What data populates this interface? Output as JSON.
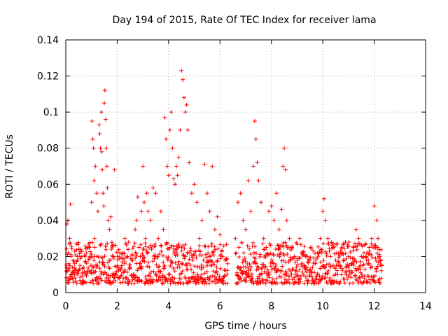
{
  "chart_data": {
    "type": "scatter",
    "title": "Day 194 of 2015, Rate Of TEC Index for receiver lama",
    "xlabel": "GPS time / hours",
    "ylabel": "ROTI / TECUs",
    "xlim": [
      0,
      14
    ],
    "ylim": [
      0,
      0.14
    ],
    "x_ticks": [
      0,
      2,
      4,
      6,
      8,
      10,
      12,
      14
    ],
    "x_tick_labels": [
      "0",
      "2",
      "4",
      "6",
      "8",
      "10",
      "12",
      "14"
    ],
    "y_ticks": [
      0,
      0.02,
      0.04,
      0.06,
      0.08,
      0.1,
      0.12,
      0.14
    ],
    "y_tick_labels": [
      "0",
      "0.02",
      "0.04",
      "0.06",
      "0.08",
      "0.1",
      "0.12",
      "0.14"
    ],
    "grid": true,
    "marker": "plus",
    "color": "#ff0000",
    "series": [
      {
        "name": "ROTI",
        "x": [
          0.02,
          0.05,
          0.08,
          0.1,
          0.12,
          0.15,
          0.18,
          0.2,
          0.25,
          0.3,
          0.35,
          0.4,
          0.45,
          0.5,
          0.55,
          0.6,
          0.65,
          0.7,
          0.75,
          0.8,
          0.85,
          0.9,
          0.95,
          1.0,
          1.02,
          1.05,
          1.08,
          1.1,
          1.12,
          1.15,
          1.2,
          1.25,
          1.3,
          1.32,
          1.35,
          1.38,
          1.4,
          1.42,
          1.45,
          1.48,
          1.5,
          1.52,
          1.55,
          1.58,
          1.6,
          1.62,
          1.65,
          1.7,
          1.75,
          1.8,
          1.85,
          1.9,
          2.0,
          2.1,
          2.2,
          2.3,
          2.4,
          2.5,
          2.6,
          2.7,
          2.75,
          2.8,
          2.85,
          2.9,
          2.95,
          3.0,
          3.05,
          3.1,
          3.15,
          3.2,
          3.3,
          3.4,
          3.5,
          3.6,
          3.7,
          3.8,
          3.85,
          3.9,
          3.95,
          4.0,
          4.05,
          4.1,
          4.15,
          4.2,
          4.25,
          4.3,
          4.35,
          4.4,
          4.45,
          4.5,
          4.55,
          4.6,
          4.65,
          4.7,
          4.75,
          4.8,
          4.9,
          5.0,
          5.1,
          5.2,
          5.3,
          5.4,
          5.5,
          5.6,
          5.7,
          5.8,
          5.9,
          6.0,
          6.1,
          6.2,
          6.3,
          6.6,
          6.7,
          6.8,
          6.9,
          7.0,
          7.1,
          7.2,
          7.3,
          7.35,
          7.4,
          7.45,
          7.5,
          7.6,
          7.7,
          7.8,
          7.9,
          8.0,
          8.1,
          8.2,
          8.3,
          8.4,
          8.45,
          8.5,
          8.55,
          8.6,
          8.7,
          8.8,
          8.9,
          9.0,
          9.1,
          9.2,
          9.3,
          9.4,
          9.5,
          9.6,
          9.7,
          9.8,
          9.9,
          10.0,
          10.05,
          10.1,
          10.2,
          10.3,
          10.4,
          10.5,
          10.6,
          10.7,
          10.8,
          10.9,
          11.0,
          11.1,
          11.2,
          11.3,
          11.4,
          11.5,
          11.6,
          11.7,
          11.8,
          11.9,
          12.0,
          12.05,
          12.1,
          12.15,
          12.2,
          12.25,
          12.3
        ],
        "y": [
          0.012,
          0.038,
          0.04,
          0.022,
          0.016,
          0.03,
          0.049,
          0.02,
          0.014,
          0.011,
          0.016,
          0.013,
          0.018,
          0.012,
          0.015,
          0.02,
          0.011,
          0.014,
          0.017,
          0.022,
          0.012,
          0.025,
          0.02,
          0.05,
          0.095,
          0.085,
          0.08,
          0.062,
          0.03,
          0.07,
          0.055,
          0.045,
          0.093,
          0.088,
          0.08,
          0.1,
          0.078,
          0.068,
          0.055,
          0.048,
          0.105,
          0.112,
          0.096,
          0.08,
          0.07,
          0.058,
          0.04,
          0.035,
          0.042,
          0.026,
          0.02,
          0.068,
          0.015,
          0.022,
          0.017,
          0.03,
          0.02,
          0.014,
          0.018,
          0.035,
          0.04,
          0.053,
          0.025,
          0.02,
          0.045,
          0.07,
          0.05,
          0.03,
          0.055,
          0.045,
          0.04,
          0.058,
          0.055,
          0.03,
          0.045,
          0.035,
          0.097,
          0.085,
          0.07,
          0.065,
          0.09,
          0.1,
          0.08,
          0.063,
          0.06,
          0.07,
          0.065,
          0.075,
          0.09,
          0.123,
          0.118,
          0.108,
          0.1,
          0.104,
          0.09,
          0.072,
          0.055,
          0.06,
          0.05,
          0.03,
          0.04,
          0.071,
          0.055,
          0.045,
          0.07,
          0.035,
          0.042,
          0.032,
          0.02,
          0.018,
          0.016,
          0.03,
          0.05,
          0.055,
          0.04,
          0.035,
          0.062,
          0.045,
          0.07,
          0.095,
          0.085,
          0.072,
          0.062,
          0.05,
          0.03,
          0.025,
          0.045,
          0.048,
          0.04,
          0.055,
          0.035,
          0.046,
          0.07,
          0.08,
          0.068,
          0.04,
          0.03,
          0.025,
          0.02,
          0.018,
          0.03,
          0.022,
          0.015,
          0.02,
          0.018,
          0.014,
          0.016,
          0.022,
          0.03,
          0.045,
          0.052,
          0.04,
          0.03,
          0.02,
          0.025,
          0.018,
          0.015,
          0.022,
          0.018,
          0.014,
          0.02,
          0.016,
          0.025,
          0.035,
          0.03,
          0.02,
          0.022,
          0.018,
          0.025,
          0.03,
          0.048,
          0.025,
          0.04,
          0.03,
          0.02,
          0.018,
          0.015
        ]
      }
    ],
    "background_band": {
      "segments": [
        [
          0.0,
          6.3
        ],
        [
          6.6,
          12.3
        ]
      ],
      "typical_min": 0.005,
      "typical_max": 0.028
    }
  }
}
